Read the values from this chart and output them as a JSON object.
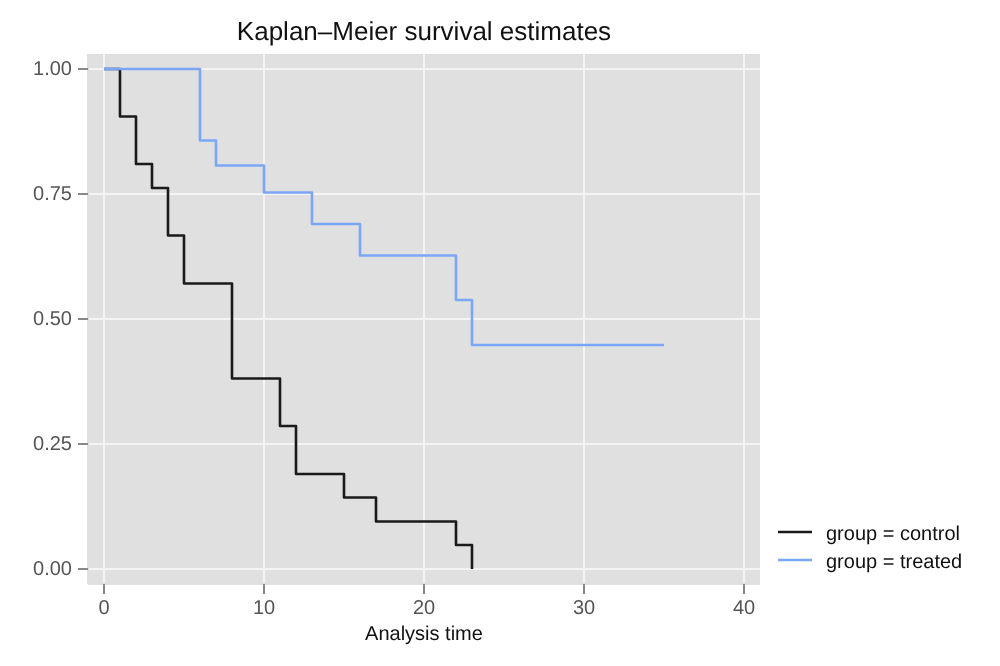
{
  "chart_data": {
    "type": "step",
    "title": "Kaplan–Meier survival estimates",
    "xlabel": "Analysis time",
    "xlim": [
      -1,
      41
    ],
    "xticks": [
      0,
      10,
      20,
      30,
      40
    ],
    "ylim": [
      -0.03,
      1.03
    ],
    "yticks": [
      {
        "value": 0,
        "label": "0.00"
      },
      {
        "value": 0.25,
        "label": "0.25"
      },
      {
        "value": 0.5,
        "label": "0.50"
      },
      {
        "value": 0.75,
        "label": "0.75"
      },
      {
        "value": 1,
        "label": "1.00"
      }
    ],
    "grid": true,
    "legend": "bottom right",
    "series": [
      {
        "name": "group = control",
        "color": "#1a1a1a",
        "x": [
          0,
          1,
          2,
          3,
          4,
          5,
          8,
          11,
          12,
          15,
          17,
          22,
          23
        ],
        "values": [
          1,
          0.905,
          0.81,
          0.762,
          0.667,
          0.571,
          0.381,
          0.286,
          0.19,
          0.143,
          0.095,
          0.048,
          0
        ]
      },
      {
        "name": "group = treated",
        "color": "#7aa6f5",
        "x": [
          0,
          6,
          7,
          10,
          13,
          16,
          22,
          23,
          35
        ],
        "values": [
          1,
          0.857,
          0.807,
          0.753,
          0.69,
          0.627,
          0.538,
          0.448,
          0.448
        ]
      }
    ]
  }
}
